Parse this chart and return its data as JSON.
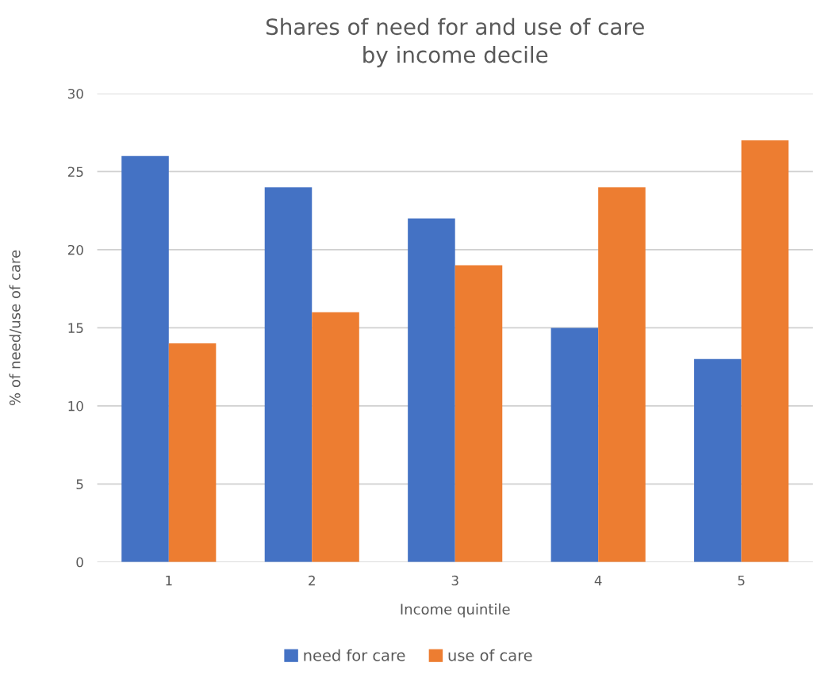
{
  "chart_data": {
    "type": "bar",
    "title": "Shares of need for and use of care\nby income decile",
    "xlabel": "Income quintile",
    "ylabel": "% of need/use of care",
    "categories": [
      "1",
      "2",
      "3",
      "4",
      "5"
    ],
    "series": [
      {
        "name": "need for care",
        "color": "#4472c4",
        "values": [
          26,
          24,
          22,
          15,
          13
        ]
      },
      {
        "name": "use of care",
        "color": "#ed7d31",
        "values": [
          14,
          16,
          19,
          24,
          27
        ]
      }
    ],
    "ylim": [
      0,
      30
    ],
    "yticks": [
      0,
      5,
      10,
      15,
      20,
      25,
      30
    ],
    "grid": "y",
    "legend": "bottom"
  }
}
